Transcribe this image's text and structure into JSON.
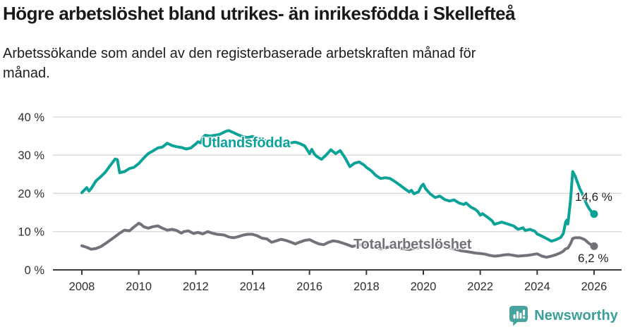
{
  "header": {
    "title": "Högre arbetslöshet bland utrikes- än inrikesfödda i Skellefteå",
    "subtitle_line1": "Arbetssökande som andel av den registerbaserade arbetskraften månad för",
    "subtitle_line2": "månad."
  },
  "chart_data": {
    "type": "line",
    "title": "Högre arbetslöshet bland utrikes- än inrikesfödda i Skellefteå",
    "subtitle": "Arbetssökande som andel av den registerbaserade arbetskraften månad för månad.",
    "xlabel": "",
    "ylabel": "",
    "ylim": [
      0,
      40
    ],
    "xlim": [
      2007,
      2027
    ],
    "grid": true,
    "legend_position": "inline-labels",
    "y_tick_values": [
      0,
      10,
      20,
      30,
      40
    ],
    "y_ticks": [
      "0 %",
      "10 %",
      "20 %",
      "30 %",
      "40 %"
    ],
    "x_ticks": [
      2008,
      2010,
      2012,
      2014,
      2016,
      2018,
      2020,
      2022,
      2024,
      2026
    ],
    "style": {
      "grid_color": "#d7d7d7",
      "axis_color": "#3b3b3b",
      "tick_text_color": "#2e2e2e",
      "background": "#ffffff"
    },
    "series": [
      {
        "name": "Utlandsfödda",
        "color": "#0ba298",
        "end_label": "14,6 %",
        "end_value": 14.6,
        "x": [
          2008.0,
          2008.08,
          2008.17,
          2008.25,
          2008.33,
          2008.5,
          2008.67,
          2008.83,
          2009.0,
          2009.17,
          2009.25,
          2009.33,
          2009.5,
          2009.67,
          2009.83,
          2010.0,
          2010.17,
          2010.33,
          2010.5,
          2010.67,
          2010.83,
          2011.0,
          2011.17,
          2011.33,
          2011.5,
          2011.67,
          2011.83,
          2012.0,
          2012.08,
          2012.17,
          2012.25,
          2012.33,
          2012.5,
          2012.67,
          2012.83,
          2012.92,
          2013.0,
          2013.08,
          2013.17,
          2013.33,
          2013.5,
          2013.67,
          2013.83,
          2014.0,
          2014.17,
          2014.33,
          2014.5,
          2014.67,
          2014.83,
          2015.0,
          2015.17,
          2015.33,
          2015.5,
          2015.67,
          2015.83,
          2015.92,
          2016.0,
          2016.08,
          2016.17,
          2016.25,
          2016.42,
          2016.58,
          2016.75,
          2016.92,
          2017.08,
          2017.25,
          2017.42,
          2017.58,
          2017.75,
          2017.92,
          2018.0,
          2018.17,
          2018.33,
          2018.5,
          2018.67,
          2018.83,
          2019.0,
          2019.17,
          2019.33,
          2019.5,
          2019.58,
          2019.67,
          2019.83,
          2019.92,
          2020.0,
          2020.08,
          2020.25,
          2020.42,
          2020.58,
          2020.75,
          2020.92,
          2021.08,
          2021.25,
          2021.42,
          2021.5,
          2021.67,
          2021.83,
          2021.92,
          2022.0,
          2022.08,
          2022.25,
          2022.42,
          2022.5,
          2022.58,
          2022.75,
          2022.92,
          2023.0,
          2023.17,
          2023.33,
          2023.5,
          2023.58,
          2023.75,
          2023.92,
          2024.0,
          2024.17,
          2024.33,
          2024.5,
          2024.67,
          2024.83,
          2024.92,
          2025.0,
          2025.04,
          2025.08,
          2025.17,
          2025.25,
          2025.33,
          2025.42,
          2025.5,
          2025.58,
          2025.67,
          2025.75,
          2025.83,
          2025.92,
          2026.0
        ],
        "values": [
          20.2,
          20.8,
          21.5,
          20.6,
          21.3,
          23.3,
          24.4,
          25.6,
          27.3,
          29.0,
          28.8,
          25.4,
          25.7,
          26.5,
          26.8,
          27.8,
          29.2,
          30.4,
          31.1,
          31.9,
          32.1,
          33.1,
          32.5,
          32.2,
          32.0,
          31.6,
          31.9,
          32.9,
          33.5,
          33.2,
          34.6,
          35.2,
          35.0,
          35.2,
          35.4,
          35.7,
          36.0,
          36.3,
          36.4,
          35.9,
          35.3,
          34.8,
          34.6,
          34.9,
          34.4,
          34.0,
          33.7,
          33.4,
          33.6,
          33.9,
          33.5,
          33.2,
          33.4,
          33.0,
          32.4,
          31.4,
          30.4,
          31.5,
          30.3,
          29.7,
          28.9,
          30.0,
          31.4,
          30.4,
          31.2,
          29.3,
          27.0,
          27.9,
          28.2,
          27.4,
          26.8,
          25.9,
          24.7,
          23.9,
          24.1,
          23.9,
          23.1,
          22.2,
          21.3,
          20.4,
          20.8,
          19.9,
          20.4,
          21.8,
          22.4,
          21.2,
          19.8,
          18.9,
          19.3,
          18.4,
          18.0,
          18.3,
          17.5,
          17.1,
          17.5,
          16.4,
          15.8,
          15.2,
          14.3,
          14.7,
          13.8,
          12.8,
          11.9,
          12.1,
          12.5,
          12.1,
          11.9,
          11.5,
          10.6,
          11.0,
          10.3,
          10.6,
          10.1,
          9.4,
          8.8,
          8.2,
          7.5,
          7.9,
          8.5,
          9.5,
          12.5,
          13.0,
          12.0,
          18.0,
          25.7,
          24.6,
          22.8,
          21.2,
          20.0,
          18.4,
          17.0,
          16.0,
          15.1,
          14.6
        ]
      },
      {
        "name": "Total arbetslöshet",
        "color": "#75717a",
        "end_label": "6,2 %",
        "end_value": 6.2,
        "x": [
          2008.0,
          2008.17,
          2008.33,
          2008.5,
          2008.67,
          2008.83,
          2009.0,
          2009.17,
          2009.33,
          2009.5,
          2009.67,
          2009.83,
          2010.0,
          2010.08,
          2010.17,
          2010.33,
          2010.5,
          2010.67,
          2010.83,
          2011.0,
          2011.17,
          2011.33,
          2011.5,
          2011.58,
          2011.75,
          2011.92,
          2012.08,
          2012.25,
          2012.42,
          2012.58,
          2012.75,
          2012.92,
          2013.0,
          2013.17,
          2013.33,
          2013.5,
          2013.67,
          2013.83,
          2014.0,
          2014.17,
          2014.33,
          2014.5,
          2014.67,
          2014.83,
          2015.0,
          2015.17,
          2015.33,
          2015.5,
          2015.67,
          2015.83,
          2016.0,
          2016.17,
          2016.33,
          2016.5,
          2016.67,
          2016.83,
          2017.0,
          2017.17,
          2017.33,
          2017.5,
          2017.67,
          2017.83,
          2018.0,
          2018.17,
          2018.33,
          2018.5,
          2018.67,
          2018.83,
          2019.0,
          2019.17,
          2019.33,
          2019.5,
          2019.67,
          2019.83,
          2020.0,
          2020.17,
          2020.33,
          2020.5,
          2020.67,
          2020.83,
          2021.0,
          2021.17,
          2021.33,
          2021.5,
          2021.67,
          2021.83,
          2022.0,
          2022.17,
          2022.33,
          2022.5,
          2022.67,
          2022.83,
          2023.0,
          2023.17,
          2023.33,
          2023.5,
          2023.67,
          2023.83,
          2024.0,
          2024.17,
          2024.33,
          2024.5,
          2024.67,
          2024.83,
          2024.92,
          2025.0,
          2025.08,
          2025.17,
          2025.25,
          2025.33,
          2025.5,
          2025.58,
          2025.67,
          2025.75,
          2025.83,
          2025.92,
          2026.0
        ],
        "values": [
          6.3,
          5.9,
          5.4,
          5.6,
          6.1,
          6.9,
          7.8,
          8.7,
          9.6,
          10.4,
          10.2,
          11.2,
          12.2,
          11.9,
          11.3,
          10.9,
          11.3,
          11.5,
          10.9,
          10.4,
          10.6,
          10.3,
          9.6,
          10.0,
          10.2,
          9.5,
          9.8,
          9.4,
          10.0,
          9.6,
          9.3,
          9.2,
          9.1,
          8.6,
          8.4,
          8.7,
          9.1,
          9.3,
          9.3,
          8.9,
          8.3,
          8.1,
          7.2,
          7.6,
          8.0,
          7.7,
          7.3,
          6.8,
          7.3,
          7.7,
          7.9,
          7.3,
          6.8,
          6.6,
          7.2,
          7.6,
          7.4,
          7.0,
          6.6,
          6.1,
          6.4,
          6.6,
          6.5,
          6.2,
          5.8,
          5.5,
          5.8,
          6.0,
          6.0,
          5.7,
          5.5,
          5.3,
          5.6,
          5.8,
          5.9,
          6.3,
          6.6,
          6.5,
          6.2,
          5.9,
          5.6,
          5.3,
          5.0,
          4.8,
          4.6,
          4.4,
          4.3,
          4.1,
          3.8,
          3.6,
          3.7,
          3.9,
          4.0,
          3.8,
          3.6,
          3.7,
          3.8,
          4.0,
          4.2,
          3.6,
          3.3,
          3.6,
          4.0,
          4.5,
          4.9,
          5.5,
          5.7,
          6.8,
          8.2,
          8.4,
          8.4,
          8.2,
          7.9,
          7.4,
          6.9,
          6.5,
          6.2
        ]
      }
    ]
  },
  "footer": {
    "brand": "Newsworthy",
    "brand_color": "#3b9e99",
    "logo_icon": "speech-bubble-bar-chart-exclamation",
    "logo_color": "#46a39e"
  }
}
